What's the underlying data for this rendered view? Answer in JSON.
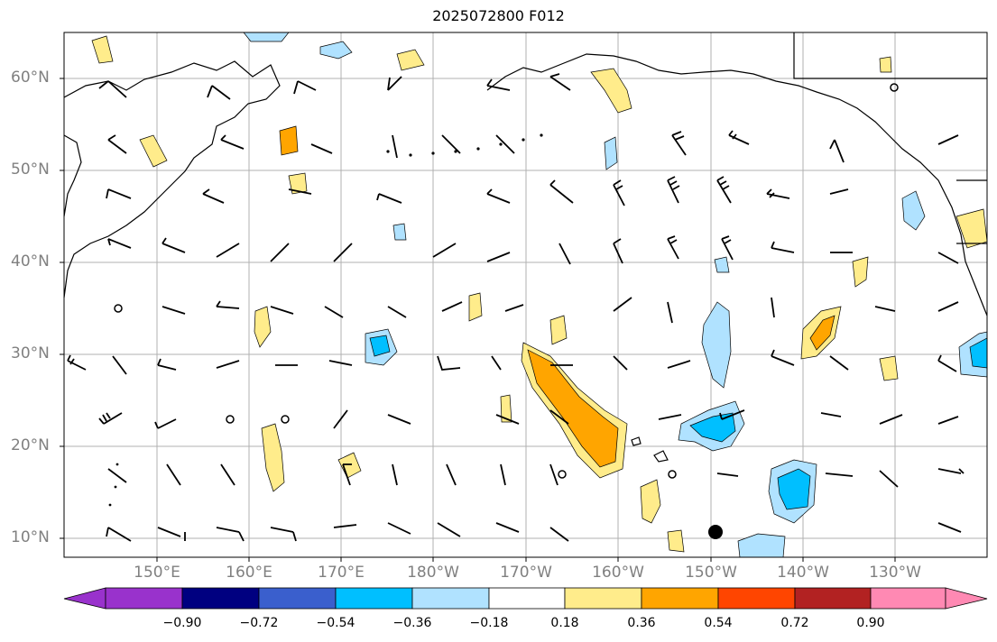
{
  "title": "2025072800 F012",
  "lat_labels": [
    "60°N",
    "50°N",
    "40°N",
    "30°N",
    "20°N",
    "10°N"
  ],
  "lon_labels": [
    "150°E",
    "160°E",
    "170°E",
    "180°W",
    "170°W",
    "160°W",
    "150°W",
    "140°W",
    "130°W"
  ],
  "colorbar": {
    "ticks": [
      "−0.90",
      "−0.72",
      "−0.54",
      "−0.36",
      "−0.18",
      "0.18",
      "0.36",
      "0.54",
      "0.72",
      "0.90"
    ],
    "colors": [
      "#9932cc",
      "#000080",
      "#3a5fcd",
      "#00bfff",
      "#b0e2ff",
      "#ffffff",
      "#ffec8b",
      "#ffa500",
      "#ff4500",
      "#b22222",
      "#ff89b3"
    ]
  }
}
